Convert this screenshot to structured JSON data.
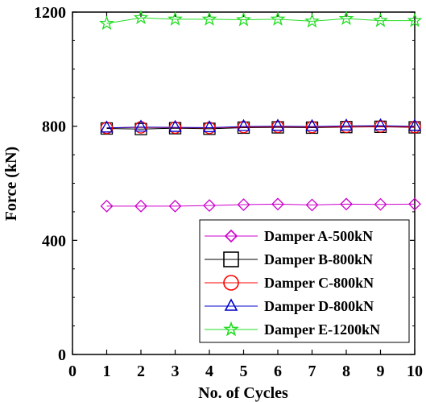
{
  "chart_data": {
    "type": "line",
    "xlabel": "No. of Cycles",
    "ylabel": "Force (kN)",
    "xlim": [
      0,
      10
    ],
    "ylim": [
      0,
      1200
    ],
    "xticks": [
      0,
      1,
      2,
      3,
      4,
      5,
      6,
      7,
      8,
      9,
      10
    ],
    "yticks": [
      0,
      400,
      800,
      1200
    ],
    "grid": false,
    "legend_position": "bottom-right",
    "x": [
      1,
      2,
      3,
      4,
      5,
      6,
      7,
      8,
      9,
      10
    ],
    "series": [
      {
        "name": "Damper A-500kN",
        "color": "#cc00cc",
        "marker": "diamond",
        "values": [
          520,
          520,
          520,
          522,
          525,
          527,
          524,
          527,
          526,
          527
        ]
      },
      {
        "name": "Damper B-800kN",
        "color": "#000000",
        "marker": "square",
        "values": [
          792,
          790,
          793,
          791,
          795,
          796,
          795,
          797,
          798,
          796
        ]
      },
      {
        "name": "Damper C-800kN",
        "color": "#ff0000",
        "marker": "circle",
        "values": [
          794,
          796,
          795,
          794,
          797,
          798,
          797,
          798,
          799,
          797
        ]
      },
      {
        "name": "Damper D-800kN",
        "color": "#0000cc",
        "marker": "triangle",
        "values": [
          794,
          797,
          796,
          795,
          799,
          800,
          799,
          801,
          802,
          800
        ]
      },
      {
        "name": "Damper E-1200kN",
        "color": "#22dd22",
        "marker": "star",
        "values": [
          1160,
          1180,
          1175,
          1175,
          1173,
          1175,
          1168,
          1177,
          1170,
          1170
        ]
      }
    ]
  }
}
